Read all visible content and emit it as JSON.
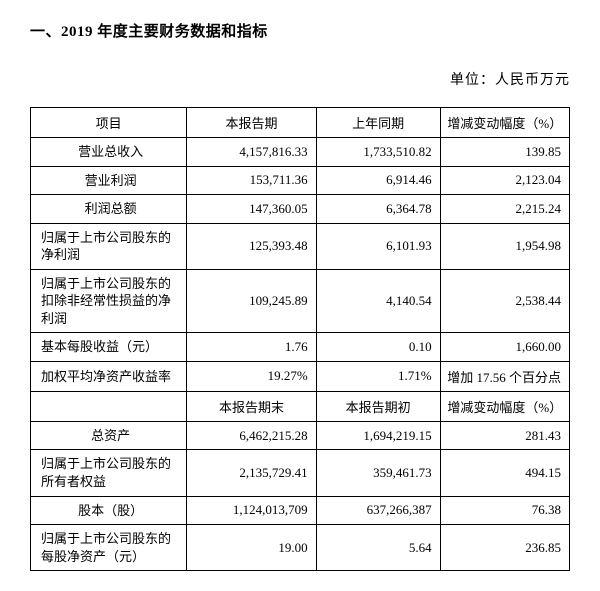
{
  "title": "一、2019 年度主要财务数据和指标",
  "unit": "单位：人民币万元",
  "header": {
    "item": "项目",
    "current": "本报告期",
    "previous": "上年同期",
    "change": "增减变动幅度（%）"
  },
  "rows1": [
    {
      "label": "营业总收入",
      "center": true,
      "cur": "4,157,816.33",
      "prev": "1,733,510.82",
      "chg": "139.85"
    },
    {
      "label": "营业利润",
      "center": true,
      "cur": "153,711.36",
      "prev": "6,914.46",
      "chg": "2,123.04"
    },
    {
      "label": "利润总额",
      "center": true,
      "cur": "147,360.05",
      "prev": "6,364.78",
      "chg": "2,215.24"
    },
    {
      "label": "归属于上市公司股东的净利润",
      "center": false,
      "cur": "125,393.48",
      "prev": "6,101.93",
      "chg": "1,954.98"
    },
    {
      "label": "归属于上市公司股东的扣除非经常性损益的净利润",
      "center": false,
      "cur": "109,245.89",
      "prev": "4,140.54",
      "chg": "2,538.44"
    },
    {
      "label": "基本每股收益（元）",
      "center": false,
      "cur": "1.76",
      "prev": "0.10",
      "chg": "1,660.00"
    },
    {
      "label": "加权平均净资产收益率",
      "center": false,
      "cur": "19.27%",
      "prev": "1.71%",
      "chg": "增加 17.56 个百分点"
    }
  ],
  "subheader": {
    "empty": "",
    "cur_end": "本报告期末",
    "prev_start": "本报告期初",
    "change": "增减变动幅度（%）"
  },
  "rows2": [
    {
      "label": "总资产",
      "center": true,
      "cur": "6,462,215.28",
      "prev": "1,694,219.15",
      "chg": "281.43"
    },
    {
      "label": "归属于上市公司股东的所有者权益",
      "center": false,
      "cur": "2,135,729.41",
      "prev": "359,461.73",
      "chg": "494.15"
    },
    {
      "label": "股本（股）",
      "center": true,
      "cur": "1,124,013,709",
      "prev": "637,266,387",
      "chg": "76.38"
    },
    {
      "label": "归属于上市公司股东的每股净资产（元）",
      "center": false,
      "cur": "19.00",
      "prev": "5.64",
      "chg": "236.85"
    }
  ]
}
